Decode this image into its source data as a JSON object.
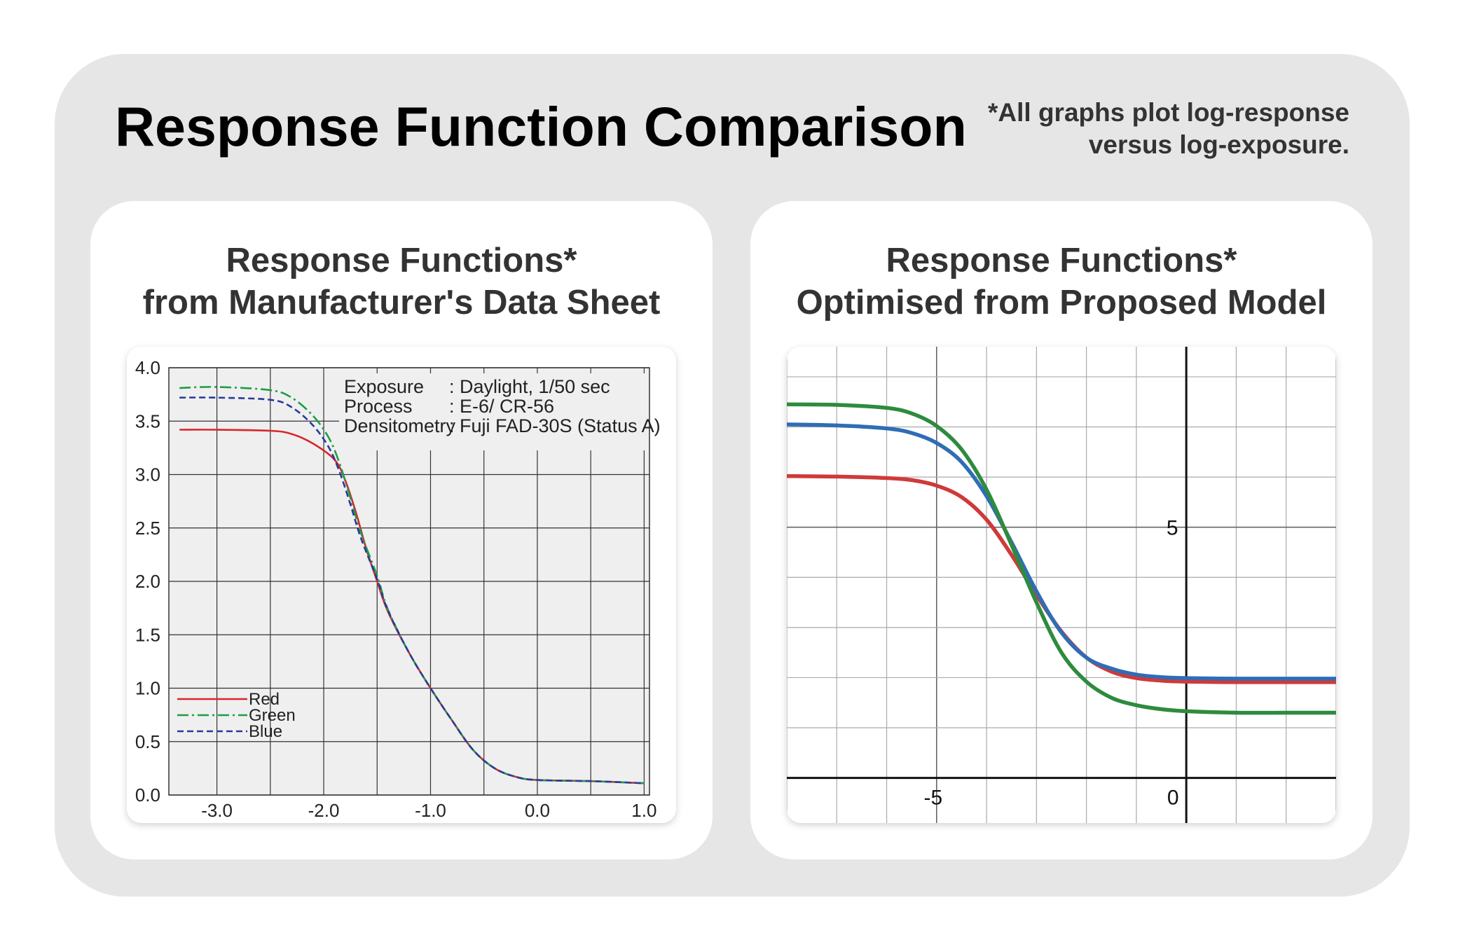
{
  "header": {
    "title": "Response Function Comparison",
    "note_line1": "*All graphs plot log-response",
    "note_line2": "versus log-exposure."
  },
  "panels": [
    {
      "title_line1": "Response Functions*",
      "title_line2": "from Manufacturer's Data Sheet"
    },
    {
      "title_line1": "Response Functions*",
      "title_line2": "Optimised from Proposed Model"
    }
  ],
  "chart_data": [
    {
      "type": "line",
      "title": "",
      "xlabel": "",
      "ylabel": "",
      "xlim": [
        -3.45,
        1.05
      ],
      "ylim": [
        0.0,
        4.0
      ],
      "xticks": [
        -3.0,
        -2.0,
        -1.0,
        0.0,
        1.0
      ],
      "xtick_labels": [
        "-3.0",
        "-2.0",
        "-1.0",
        "0.0",
        "1.0"
      ],
      "yticks": [
        0.0,
        0.5,
        1.0,
        1.5,
        2.0,
        2.5,
        3.0,
        3.5,
        4.0
      ],
      "ytick_labels": [
        "0.0",
        "0.5",
        "1.0",
        "1.5",
        "2.0",
        "2.5",
        "3.0",
        "3.5",
        "4.0"
      ],
      "grid": true,
      "legend_position": "bottom-left",
      "annotation": {
        "rows": [
          {
            "label": "Exposure",
            "value": ": Daylight, 1/50 sec"
          },
          {
            "label": "Process",
            "value": ": E-6/ CR-56"
          },
          {
            "label": "Densitometry",
            "value": ": Fuji FAD-30S (Status A)"
          }
        ]
      },
      "series": [
        {
          "name": "Red",
          "color": "#d9262b",
          "dash": "solid",
          "x": [
            -3.35,
            -3.0,
            -2.5,
            -2.3,
            -2.1,
            -1.9,
            -1.8,
            -1.7,
            -1.6,
            -1.5,
            -1.4,
            -1.2,
            -1.0,
            -0.8,
            -0.6,
            -0.4,
            -0.2,
            0.0,
            0.5,
            1.0
          ],
          "y": [
            3.42,
            3.42,
            3.41,
            3.38,
            3.29,
            3.14,
            2.95,
            2.65,
            2.3,
            2.0,
            1.72,
            1.33,
            1.0,
            0.7,
            0.42,
            0.25,
            0.17,
            0.14,
            0.13,
            0.11
          ]
        },
        {
          "name": "Green",
          "color": "#1c9e45",
          "dash": "dashdot",
          "x": [
            -3.35,
            -3.0,
            -2.5,
            -2.3,
            -2.1,
            -1.95,
            -1.85,
            -1.75,
            -1.65,
            -1.5,
            -1.4,
            -1.2,
            -1.0,
            -0.8,
            -0.6,
            -0.4,
            -0.2,
            0.0,
            0.5,
            1.0
          ],
          "y": [
            3.81,
            3.82,
            3.79,
            3.72,
            3.55,
            3.34,
            3.1,
            2.78,
            2.45,
            2.05,
            1.74,
            1.33,
            1.0,
            0.7,
            0.42,
            0.25,
            0.17,
            0.14,
            0.13,
            0.11
          ]
        },
        {
          "name": "Blue",
          "color": "#2a3a9c",
          "dash": "dashed",
          "x": [
            -3.35,
            -3.0,
            -2.5,
            -2.3,
            -2.1,
            -1.95,
            -1.85,
            -1.75,
            -1.65,
            -1.5,
            -1.4,
            -1.2,
            -1.0,
            -0.8,
            -0.6,
            -0.4,
            -0.2,
            0.0,
            0.5,
            1.0
          ],
          "y": [
            3.72,
            3.72,
            3.7,
            3.63,
            3.46,
            3.25,
            3.02,
            2.72,
            2.4,
            2.02,
            1.73,
            1.33,
            1.0,
            0.7,
            0.42,
            0.25,
            0.17,
            0.14,
            0.13,
            0.11
          ]
        }
      ]
    },
    {
      "type": "line",
      "title": "",
      "xlabel": "",
      "ylabel": "",
      "xlim": [
        -8.0,
        3.0
      ],
      "ylim": [
        -0.9,
        8.6
      ],
      "xticks": [
        -5,
        0
      ],
      "xtick_labels": [
        "-5",
        "0"
      ],
      "yticks": [
        5
      ],
      "ytick_labels": [
        "5"
      ],
      "grid": true,
      "axes_through_origin": true,
      "series": [
        {
          "color": "#cf3a3a",
          "x": [
            -8.0,
            -7.0,
            -6.0,
            -5.5,
            -5.0,
            -4.5,
            -4.0,
            -3.5,
            -3.0,
            -2.5,
            -2.0,
            -1.5,
            -1.0,
            -0.5,
            0.0,
            1.0,
            2.0,
            3.0
          ],
          "y": [
            6.02,
            6.01,
            5.98,
            5.94,
            5.83,
            5.6,
            5.15,
            4.45,
            3.65,
            2.92,
            2.4,
            2.12,
            1.99,
            1.94,
            1.92,
            1.91,
            1.91,
            1.91
          ]
        },
        {
          "color": "#2f6db5",
          "x": [
            -8.0,
            -7.0,
            -6.0,
            -5.5,
            -5.0,
            -4.5,
            -4.0,
            -3.5,
            -3.0,
            -2.5,
            -2.0,
            -1.5,
            -1.0,
            -0.5,
            0.0,
            1.0,
            2.0,
            3.0
          ],
          "y": [
            7.05,
            7.03,
            6.97,
            6.88,
            6.68,
            6.3,
            5.62,
            4.7,
            3.72,
            2.9,
            2.4,
            2.18,
            2.06,
            2.01,
            1.99,
            1.98,
            1.98,
            1.98
          ]
        },
        {
          "color": "#2e8b3e",
          "x": [
            -8.0,
            -7.0,
            -6.0,
            -5.5,
            -5.0,
            -4.5,
            -4.0,
            -3.5,
            -3.0,
            -2.5,
            -2.0,
            -1.5,
            -1.0,
            -0.5,
            0.0,
            1.0,
            2.0,
            3.0
          ],
          "y": [
            7.45,
            7.44,
            7.38,
            7.27,
            7.02,
            6.55,
            5.75,
            4.65,
            3.5,
            2.5,
            1.92,
            1.6,
            1.45,
            1.37,
            1.33,
            1.3,
            1.3,
            1.3
          ]
        }
      ]
    }
  ]
}
